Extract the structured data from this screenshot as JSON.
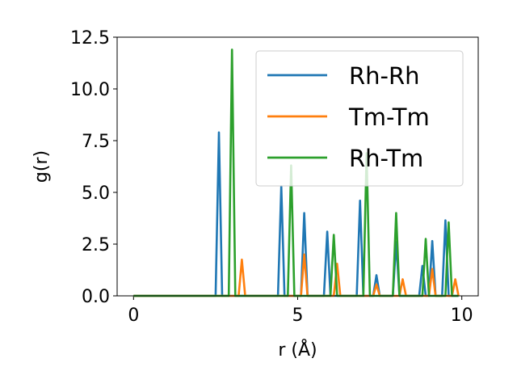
{
  "chart_data": {
    "type": "line",
    "title": "",
    "xlabel": "r (Å)",
    "ylabel": "g(r)",
    "xlim": [
      -0.5,
      10.5
    ],
    "ylim": [
      0,
      12.5
    ],
    "xticks": [
      0,
      5,
      10
    ],
    "xtick_labels": [
      "0",
      "5",
      "10"
    ],
    "yticks": [
      0,
      2.5,
      5,
      7.5,
      10,
      12.5
    ],
    "ytick_labels": [
      "0.0",
      "2.5",
      "5.0",
      "7.5",
      "10.0",
      "12.5"
    ],
    "grid": false,
    "legend_position": "top-right",
    "series": [
      {
        "name": "Rh-Rh",
        "color": "#1f77b4",
        "x": [
          0,
          2.5,
          2.6,
          2.7,
          4.4,
          4.5,
          4.6,
          5.1,
          5.2,
          5.3,
          5.8,
          5.9,
          6.0,
          6.8,
          6.9,
          7.0,
          7.3,
          7.4,
          7.5,
          7.9,
          8.0,
          8.1,
          8.7,
          8.8,
          8.9,
          9.0,
          9.1,
          9.2,
          9.4,
          9.5,
          9.6,
          9.9
        ],
        "y": [
          0,
          0,
          7.9,
          0,
          0,
          5.3,
          0,
          0,
          4.0,
          0,
          0,
          3.1,
          0,
          0,
          4.6,
          0,
          0,
          1.0,
          0,
          0,
          2.6,
          0,
          0,
          1.45,
          0,
          0,
          2.65,
          0,
          0,
          3.65,
          0,
          0
        ]
      },
      {
        "name": "Tm-Tm",
        "color": "#ff7f0e",
        "x": [
          0,
          3.2,
          3.3,
          3.4,
          5.1,
          5.2,
          5.3,
          6.1,
          6.2,
          6.3,
          7.3,
          7.4,
          7.5,
          8.1,
          8.2,
          8.3,
          9.0,
          9.1,
          9.2,
          9.7,
          9.8,
          9.9
        ],
        "y": [
          0,
          0,
          1.75,
          0,
          0,
          2.0,
          0,
          0,
          1.55,
          0,
          0,
          0.55,
          0,
          0,
          0.8,
          0,
          0,
          1.3,
          0,
          0,
          0.8,
          0
        ]
      },
      {
        "name": "Rh-Tm",
        "color": "#2ca02c",
        "x": [
          0,
          2.9,
          3.0,
          3.1,
          4.7,
          4.8,
          4.9,
          6.0,
          6.1,
          6.2,
          7.0,
          7.1,
          7.2,
          7.9,
          8.0,
          8.1,
          8.8,
          8.9,
          9.0,
          9.5,
          9.6,
          9.7,
          9.9
        ],
        "y": [
          0,
          0,
          11.9,
          0,
          0,
          6.3,
          0,
          0,
          2.95,
          0,
          0,
          6.9,
          0,
          0,
          4.0,
          0,
          0,
          2.75,
          0,
          0,
          3.55,
          0,
          0
        ]
      }
    ]
  }
}
